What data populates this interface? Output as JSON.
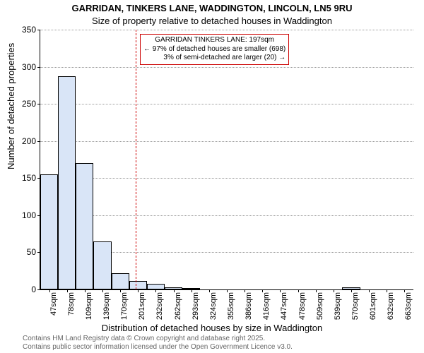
{
  "title_main": "GARRIDAN, TINKERS LANE, WADDINGTON, LINCOLN, LN5 9RU",
  "title_sub": "Size of property relative to detached houses in Waddington",
  "xlabel": "Distribution of detached houses by size in Waddington",
  "ylabel": "Number of detached properties",
  "footnote_line1": "Contains HM Land Registry data © Crown copyright and database right 2025.",
  "footnote_line2": "Contains public sector information licensed under the Open Government Licence v3.0.",
  "annotation": {
    "line1": "GARRIDAN TINKERS LANE: 197sqm",
    "line2": "← 97% of detached houses are smaller (698)",
    "line3": "3% of semi-detached are larger (20) →"
  },
  "chart": {
    "type": "histogram",
    "ylim": [
      0,
      350
    ],
    "ytick_step": 50,
    "bar_fill": "#d9e5f7",
    "bar_stroke": "#000000",
    "grid_color": "#999999",
    "vline_color": "#cc0000",
    "vline_x_value": 197,
    "background_color": "#ffffff",
    "categories": [
      "47sqm",
      "78sqm",
      "109sqm",
      "139sqm",
      "170sqm",
      "201sqm",
      "232sqm",
      "262sqm",
      "293sqm",
      "324sqm",
      "355sqm",
      "386sqm",
      "416sqm",
      "447sqm",
      "478sqm",
      "509sqm",
      "539sqm",
      "570sqm",
      "601sqm",
      "632sqm",
      "663sqm"
    ],
    "values": [
      155,
      287,
      170,
      65,
      22,
      11,
      8,
      3,
      2,
      0,
      0,
      0,
      0,
      0,
      0,
      0,
      0,
      3,
      0,
      0,
      0
    ],
    "bar_width_ratio": 1.0,
    "title_fontsize": 13,
    "label_fontsize": 13,
    "tick_fontsize": 11,
    "annotation_fontsize": 10
  }
}
